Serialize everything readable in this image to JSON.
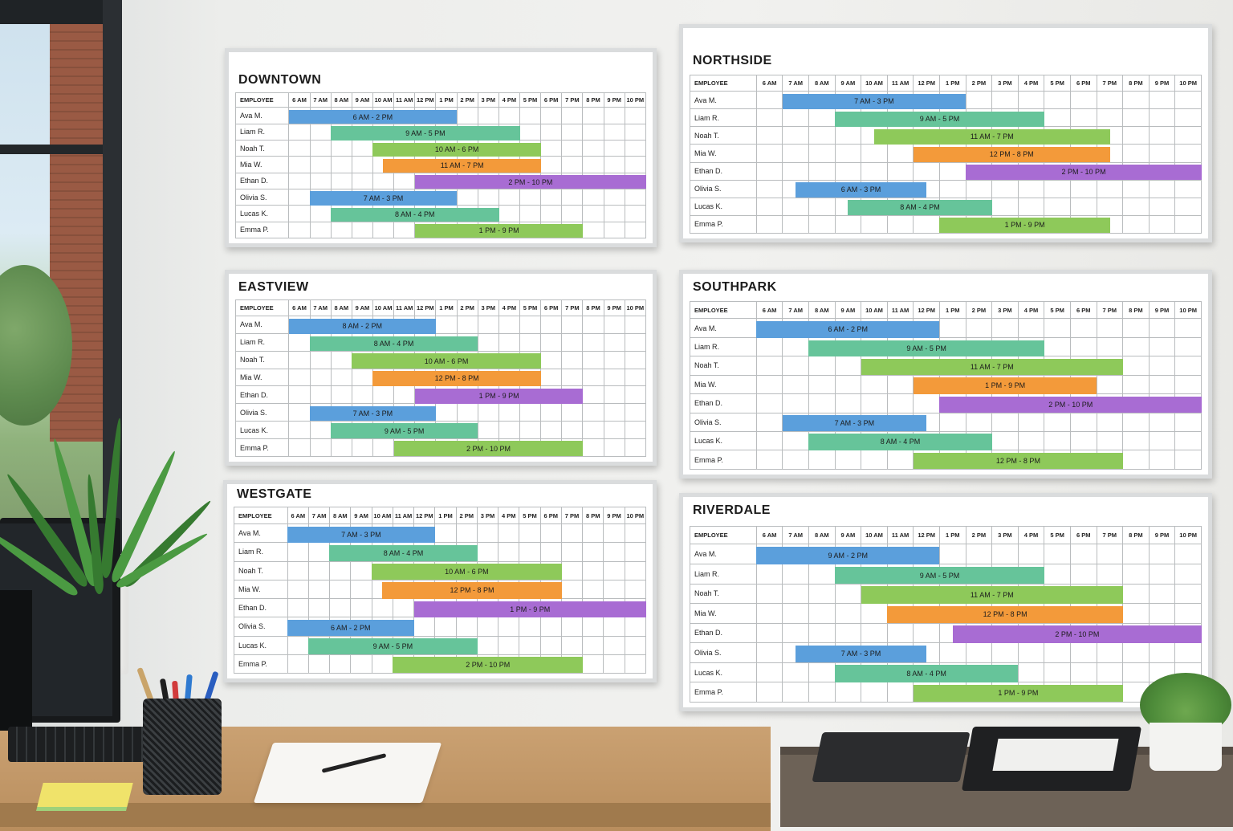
{
  "hours": [
    "6 AM",
    "7 AM",
    "8 AM",
    "9 AM",
    "10 AM",
    "11 AM",
    "12 PM",
    "1 PM",
    "2 PM",
    "3 PM",
    "4 PM",
    "5 PM",
    "6 PM",
    "7 PM",
    "8 PM",
    "9 PM",
    "10 PM"
  ],
  "employee_header": "EMPLOYEE",
  "colors": {
    "Ava M.": "#5b9fdc",
    "Liam R.": "#66c49a",
    "Noah T.": "#8ec95a",
    "Mia W.": "#f39a3a",
    "Ethan D.": "#a86cd3",
    "Olivia S.": "#5b9fdc",
    "Lucas K.": "#66c49a",
    "Emma P.": "#8ec95a"
  },
  "boards": [
    {
      "title": "DOWNTOWN",
      "rows": [
        {
          "name": "Ava M.",
          "label": "6 AM - 2 PM",
          "start": 0,
          "end": 8
        },
        {
          "name": "Liam R.",
          "label": "9 AM - 5 PM",
          "start": 2,
          "end": 11
        },
        {
          "name": "Noah T.",
          "label": "10 AM - 6 PM",
          "start": 4,
          "end": 12
        },
        {
          "name": "Mia W.",
          "label": "11 AM - 7 PM",
          "start": 4.5,
          "end": 12
        },
        {
          "name": "Ethan D.",
          "label": "2 PM - 10 PM",
          "start": 6,
          "end": 17
        },
        {
          "name": "Olivia S.",
          "label": "7 AM - 3 PM",
          "start": 1,
          "end": 8
        },
        {
          "name": "Lucas K.",
          "label": "8 AM - 4 PM",
          "start": 2,
          "end": 10
        },
        {
          "name": "Emma P.",
          "label": "1 PM - 9 PM",
          "start": 6,
          "end": 14
        }
      ]
    },
    {
      "title": "NORTHSIDE",
      "rows": [
        {
          "name": "Ava M.",
          "label": "7 AM - 3 PM",
          "start": 1,
          "end": 8
        },
        {
          "name": "Liam R.",
          "label": "9 AM - 5 PM",
          "start": 3,
          "end": 11
        },
        {
          "name": "Noah T.",
          "label": "11 AM - 7 PM",
          "start": 4.5,
          "end": 13.5
        },
        {
          "name": "Mia W.",
          "label": "12 PM - 8 PM",
          "start": 6,
          "end": 13.5
        },
        {
          "name": "Ethan D.",
          "label": "2 PM - 10 PM",
          "start": 8,
          "end": 17
        },
        {
          "name": "Olivia S.",
          "label": "6 AM - 3 PM",
          "start": 1.5,
          "end": 6.5
        },
        {
          "name": "Lucas K.",
          "label": "8 AM - 4 PM",
          "start": 3.5,
          "end": 9
        },
        {
          "name": "Emma P.",
          "label": "1 PM - 9 PM",
          "start": 7,
          "end": 13.5
        }
      ]
    },
    {
      "title": "EASTVIEW",
      "rows": [
        {
          "name": "Ava M.",
          "label": "8 AM - 2 PM",
          "start": 0,
          "end": 7
        },
        {
          "name": "Liam R.",
          "label": "8 AM - 4 PM",
          "start": 1,
          "end": 9
        },
        {
          "name": "Noah T.",
          "label": "10 AM - 6 PM",
          "start": 3,
          "end": 12
        },
        {
          "name": "Mia W.",
          "label": "12 PM - 8 PM",
          "start": 4,
          "end": 12
        },
        {
          "name": "Ethan D.",
          "label": "1 PM - 9 PM",
          "start": 6,
          "end": 14
        },
        {
          "name": "Olivia S.",
          "label": "7 AM - 3 PM",
          "start": 1,
          "end": 7
        },
        {
          "name": "Lucas K.",
          "label": "9 AM - 5 PM",
          "start": 2,
          "end": 9
        },
        {
          "name": "Emma P.",
          "label": "2 PM - 10 PM",
          "start": 5,
          "end": 14
        }
      ]
    },
    {
      "title": "SOUTHPARK",
      "rows": [
        {
          "name": "Ava M.",
          "label": "6 AM - 2 PM",
          "start": 0,
          "end": 7
        },
        {
          "name": "Liam R.",
          "label": "9 AM - 5 PM",
          "start": 2,
          "end": 11
        },
        {
          "name": "Noah T.",
          "label": "11 AM - 7 PM",
          "start": 4,
          "end": 14
        },
        {
          "name": "Mia W.",
          "label": "1 PM - 9 PM",
          "start": 6,
          "end": 13
        },
        {
          "name": "Ethan D.",
          "label": "2 PM - 10 PM",
          "start": 7,
          "end": 17
        },
        {
          "name": "Olivia S.",
          "label": "7 AM - 3 PM",
          "start": 1,
          "end": 6.5
        },
        {
          "name": "Lucas K.",
          "label": "8 AM - 4 PM",
          "start": 2,
          "end": 9
        },
        {
          "name": "Emma P.",
          "label": "12 PM - 8 PM",
          "start": 6,
          "end": 14
        }
      ]
    },
    {
      "title": "WESTGATE",
      "rows": [
        {
          "name": "Ava M.",
          "label": "7 AM - 3 PM",
          "start": 0,
          "end": 7
        },
        {
          "name": "Liam R.",
          "label": "8 AM - 4 PM",
          "start": 2,
          "end": 9
        },
        {
          "name": "Noah T.",
          "label": "10 AM - 6 PM",
          "start": 4,
          "end": 13
        },
        {
          "name": "Mia W.",
          "label": "12 PM - 8 PM",
          "start": 4.5,
          "end": 13
        },
        {
          "name": "Ethan D.",
          "label": "1 PM - 9 PM",
          "start": 6,
          "end": 17
        },
        {
          "name": "Olivia S.",
          "label": "6 AM - 2 PM",
          "start": 0,
          "end": 6
        },
        {
          "name": "Lucas K.",
          "label": "9 AM - 5 PM",
          "start": 1,
          "end": 9
        },
        {
          "name": "Emma P.",
          "label": "2 PM - 10 PM",
          "start": 5,
          "end": 14
        }
      ]
    },
    {
      "title": "RIVERDALE",
      "rows": [
        {
          "name": "Ava M.",
          "label": "9 AM - 2 PM",
          "start": 0,
          "end": 7
        },
        {
          "name": "Liam R.",
          "label": "9 AM - 5 PM",
          "start": 3,
          "end": 11
        },
        {
          "name": "Noah T.",
          "label": "11 AM - 7 PM",
          "start": 4,
          "end": 14
        },
        {
          "name": "Mia W.",
          "label": "12 PM - 8 PM",
          "start": 5,
          "end": 14
        },
        {
          "name": "Ethan D.",
          "label": "2 PM - 10 PM",
          "start": 7.5,
          "end": 17
        },
        {
          "name": "Olivia S.",
          "label": "7 AM - 3 PM",
          "start": 1.5,
          "end": 6.5
        },
        {
          "name": "Lucas K.",
          "label": "8 AM - 4 PM",
          "start": 3,
          "end": 10
        },
        {
          "name": "Emma P.",
          "label": "1 PM - 9 PM",
          "start": 6,
          "end": 14
        }
      ]
    }
  ]
}
